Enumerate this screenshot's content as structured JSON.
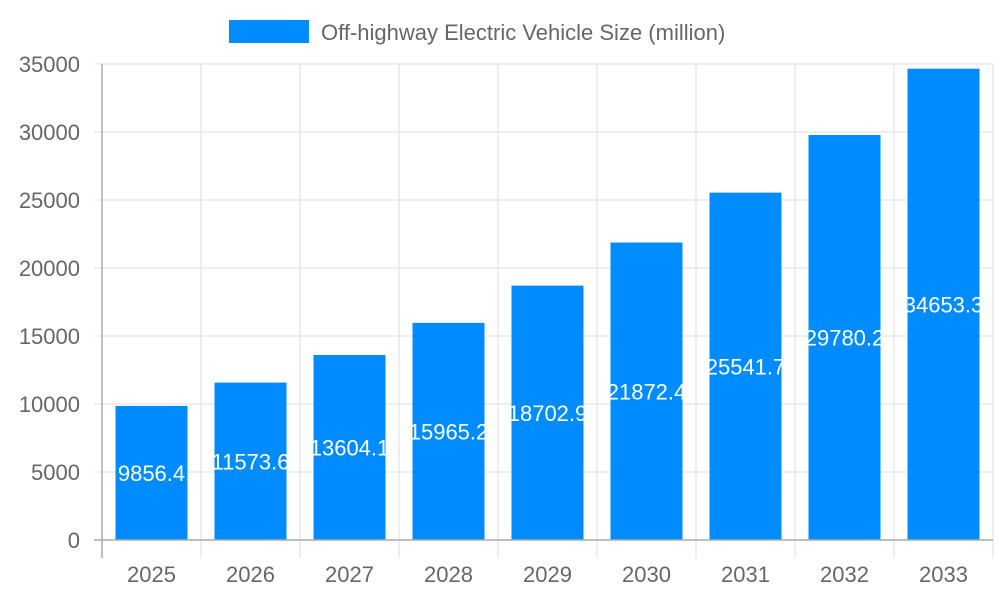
{
  "chart_data": {
    "type": "bar",
    "title": "",
    "xlabel": "",
    "ylabel": "",
    "categories": [
      "2025",
      "2026",
      "2027",
      "2028",
      "2029",
      "2030",
      "2031",
      "2032",
      "2033"
    ],
    "series": [
      {
        "name": "Off-highway Electric Vehicle Size (million)",
        "values": [
          9856.4,
          11573.6,
          13604.1,
          15965.2,
          18702.9,
          21872.4,
          25541.7,
          29780.2,
          34653.3
        ],
        "color": "#008CFF"
      }
    ],
    "data_labels": [
      "9856.4",
      "11573.6",
      "13604.1",
      "15965.2",
      "18702.9",
      "21872.4",
      "25541.7",
      "29780.2",
      "34653.3"
    ],
    "ylim": [
      0,
      35000
    ],
    "yticks": [
      "0",
      "5000",
      "10000",
      "15000",
      "20000",
      "25000",
      "30000",
      "35000"
    ],
    "grid": true,
    "legend_position": "top"
  }
}
